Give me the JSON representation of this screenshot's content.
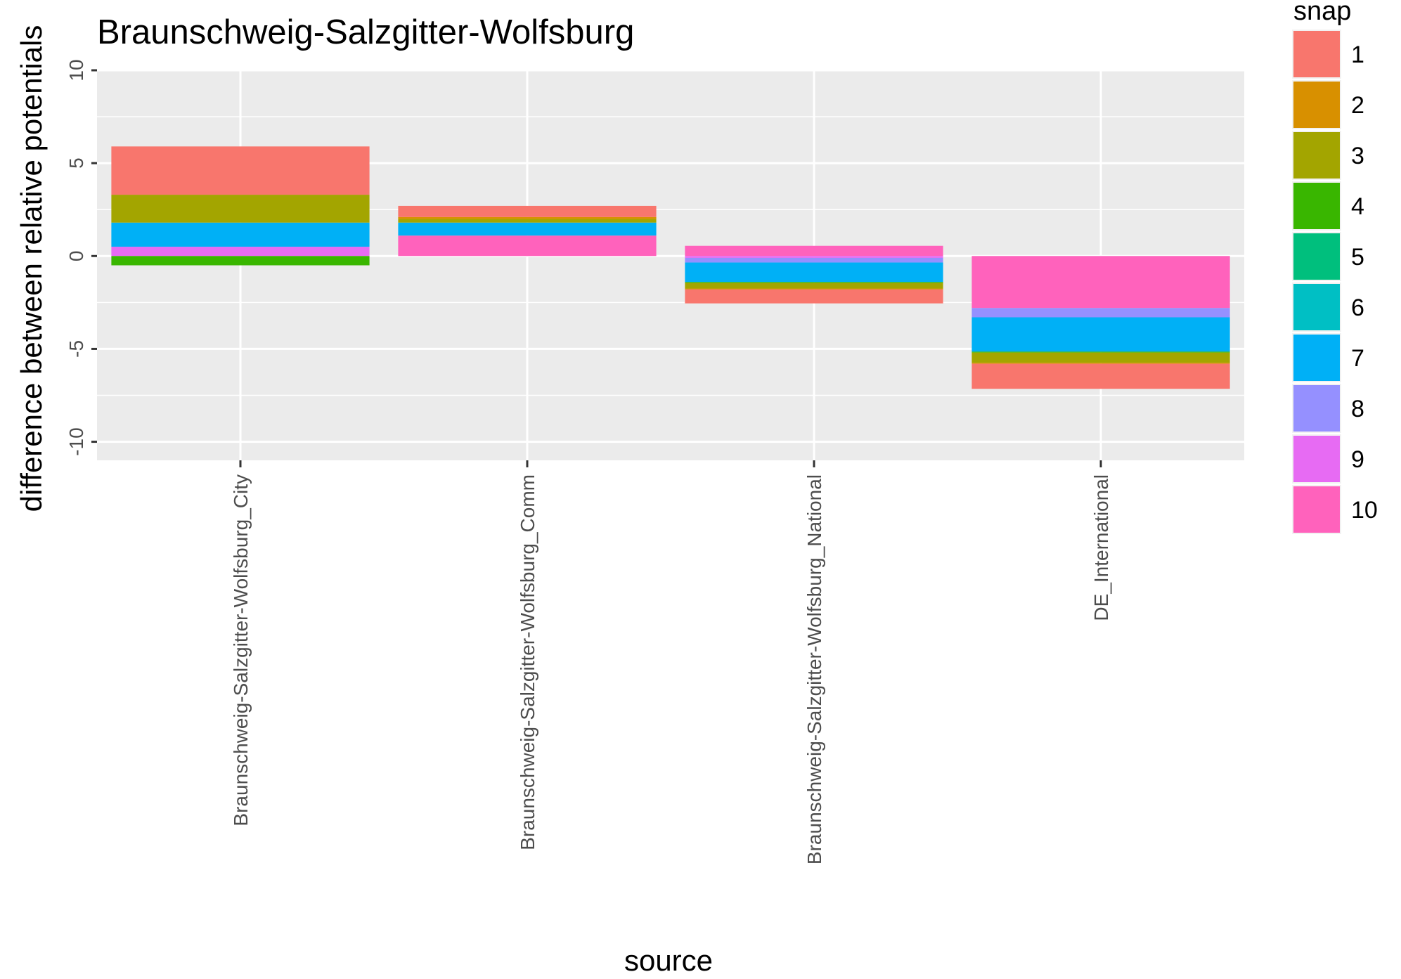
{
  "chart_data": {
    "type": "bar",
    "stacked": true,
    "title": "Braunschweig-Salzgitter-Wolfsburg",
    "xlabel": "source",
    "ylabel": "difference between relative potentials",
    "ylim": [
      -11,
      10
    ],
    "yticks": [
      -10,
      -5,
      0,
      5,
      10
    ],
    "grid": true,
    "background": "#ebebeb",
    "legend": {
      "title": "snap",
      "position": "right"
    },
    "categories": [
      "Braunschweig-Salzgitter-Wolfsburg_City",
      "Braunschweig-Salzgitter-Wolfsburg_Comm",
      "Braunschweig-Salzgitter-Wolfsburg_National",
      "DE_International"
    ],
    "series": [
      {
        "name": "1",
        "color": "#F8766D",
        "values": [
          2.6,
          0.6,
          -0.75,
          -1.35
        ]
      },
      {
        "name": "2",
        "color": "#D89000",
        "values": [
          0.0,
          0.1,
          -0.05,
          -0.05
        ]
      },
      {
        "name": "3",
        "color": "#A3A500",
        "values": [
          1.5,
          0.2,
          -0.3,
          -0.55
        ]
      },
      {
        "name": "4",
        "color": "#39B600",
        "values": [
          -0.5,
          0.0,
          -0.05,
          -0.05
        ]
      },
      {
        "name": "5",
        "color": "#00BF7D",
        "values": [
          0.0,
          0.0,
          0.0,
          0.0
        ]
      },
      {
        "name": "6",
        "color": "#00BFC4",
        "values": [
          0.0,
          0.0,
          0.0,
          0.0
        ]
      },
      {
        "name": "7",
        "color": "#00B0F6",
        "values": [
          1.3,
          0.7,
          -1.05,
          -1.85
        ]
      },
      {
        "name": "8",
        "color": "#9590FF",
        "values": [
          0.0,
          0.0,
          -0.25,
          -0.5
        ]
      },
      {
        "name": "9",
        "color": "#E76BF3",
        "values": [
          0.5,
          0.0,
          -0.1,
          0.0
        ]
      },
      {
        "name": "10",
        "color": "#FF62BC",
        "values": [
          0.0,
          1.1,
          0.55,
          -2.8
        ]
      }
    ]
  }
}
